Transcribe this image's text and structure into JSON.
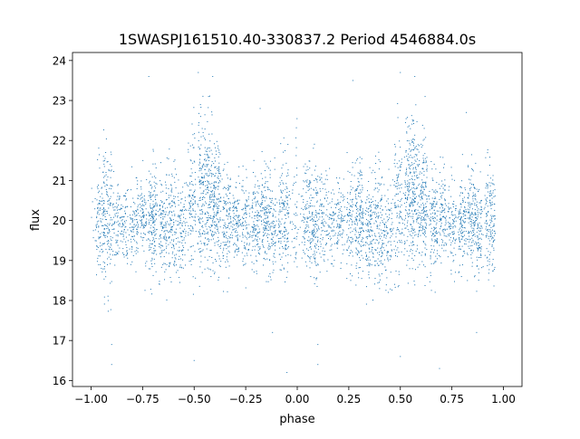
{
  "chart_data": {
    "type": "scatter",
    "title": "1SWASPJ161510.40-330837.2 Period 4546884.0s",
    "xlabel": "phase",
    "ylabel": "flux",
    "xlim": [
      -1.09,
      1.09
    ],
    "ylim": [
      15.85,
      24.2
    ],
    "x_ticks": [
      -1.0,
      -0.75,
      -0.5,
      -0.25,
      0.0,
      0.25,
      0.5,
      0.75,
      1.0
    ],
    "x_tick_labels": [
      "−1.00",
      "−0.75",
      "−0.50",
      "−0.25",
      "0.00",
      "0.25",
      "0.50",
      "0.75",
      "1.00"
    ],
    "y_ticks": [
      16,
      17,
      18,
      19,
      20,
      21,
      22,
      23,
      24
    ],
    "y_tick_labels": [
      "16",
      "17",
      "18",
      "19",
      "20",
      "21",
      "22",
      "23",
      "24"
    ],
    "grid": false,
    "legend": "none",
    "marker_color": "#1f77b4",
    "series": [
      {
        "phase_range": [
          -1.0,
          0.96
        ],
        "folding": "phase-folded light curve; pattern repeats with period 1.0 in phase",
        "clusters": [
          {
            "phase": 0.045,
            "half_width": 0.02,
            "flux_low": 18.7,
            "flux_high": 21.4,
            "n": 80
          },
          {
            "phase": 0.08,
            "half_width": 0.02,
            "flux_low": 18.3,
            "flux_high": 21.7,
            "n": 120
          },
          {
            "phase": 0.12,
            "half_width": 0.02,
            "flux_low": 18.9,
            "flux_high": 21.0,
            "n": 60
          },
          {
            "phase": 0.16,
            "half_width": 0.02,
            "flux_low": 19.0,
            "flux_high": 20.9,
            "n": 60
          },
          {
            "phase": 0.21,
            "half_width": 0.02,
            "flux_low": 18.9,
            "flux_high": 21.0,
            "n": 70
          },
          {
            "phase": 0.255,
            "half_width": 0.015,
            "flux_low": 18.8,
            "flux_high": 21.2,
            "n": 70
          },
          {
            "phase": 0.3,
            "half_width": 0.02,
            "flux_low": 18.6,
            "flux_high": 21.4,
            "n": 140
          },
          {
            "phase": 0.35,
            "half_width": 0.02,
            "flux_low": 18.4,
            "flux_high": 21.2,
            "n": 100
          },
          {
            "phase": 0.395,
            "half_width": 0.02,
            "flux_low": 18.3,
            "flux_high": 21.5,
            "n": 110
          },
          {
            "phase": 0.44,
            "half_width": 0.02,
            "flux_low": 18.5,
            "flux_high": 21.0,
            "n": 80
          },
          {
            "phase": 0.49,
            "half_width": 0.02,
            "flux_low": 18.6,
            "flux_high": 22.4,
            "n": 90
          },
          {
            "phase": 0.555,
            "half_width": 0.035,
            "flux_low": 18.8,
            "flux_high": 22.6,
            "n": 260
          },
          {
            "phase": 0.61,
            "half_width": 0.02,
            "flux_low": 18.9,
            "flux_high": 22.0,
            "n": 150
          },
          {
            "phase": 0.66,
            "half_width": 0.02,
            "flux_low": 18.6,
            "flux_high": 21.4,
            "n": 110
          },
          {
            "phase": 0.705,
            "half_width": 0.02,
            "flux_low": 19.0,
            "flux_high": 21.1,
            "n": 80
          },
          {
            "phase": 0.75,
            "half_width": 0.02,
            "flux_low": 18.8,
            "flux_high": 21.0,
            "n": 70
          },
          {
            "phase": 0.8,
            "half_width": 0.02,
            "flux_low": 18.7,
            "flux_high": 21.1,
            "n": 100
          },
          {
            "phase": 0.845,
            "half_width": 0.02,
            "flux_low": 18.9,
            "flux_high": 21.4,
            "n": 120
          },
          {
            "phase": 0.88,
            "half_width": 0.015,
            "flux_low": 18.4,
            "flux_high": 21.1,
            "n": 80
          },
          {
            "phase": 0.935,
            "half_width": 0.025,
            "flux_low": 18.6,
            "flux_high": 21.5,
            "n": 130
          },
          {
            "phase": 0.99,
            "half_width": 0.01,
            "flux_low": 18.4,
            "flux_high": 22.0,
            "n": 30
          }
        ],
        "outliers": [
          {
            "phase": -0.48,
            "flux": 23.7
          },
          {
            "phase": -0.41,
            "flux": 23.6
          },
          {
            "phase": -0.43,
            "flux": 23.1
          },
          {
            "phase": -0.9,
            "flux": 16.4
          },
          {
            "phase": -0.9,
            "flux": 16.9
          },
          {
            "phase": -0.5,
            "flux": 16.5
          },
          {
            "phase": -0.05,
            "flux": 16.2
          },
          {
            "phase": 0.1,
            "flux": 16.4
          },
          {
            "phase": 0.1,
            "flux": 16.9
          },
          {
            "phase": 0.5,
            "flux": 23.7
          },
          {
            "phase": 0.57,
            "flux": 23.6
          },
          {
            "phase": 0.62,
            "flux": 23.1
          },
          {
            "phase": 0.5,
            "flux": 16.6
          },
          {
            "phase": 0.69,
            "flux": 16.3
          },
          {
            "phase": 0.87,
            "flux": 17.2
          },
          {
            "phase": -0.12,
            "flux": 17.2
          },
          {
            "phase": -0.18,
            "flux": 22.8
          },
          {
            "phase": 0.82,
            "flux": 22.7
          },
          {
            "phase": -0.72,
            "flux": 23.6
          },
          {
            "phase": 0.27,
            "flux": 23.5
          }
        ]
      }
    ]
  }
}
